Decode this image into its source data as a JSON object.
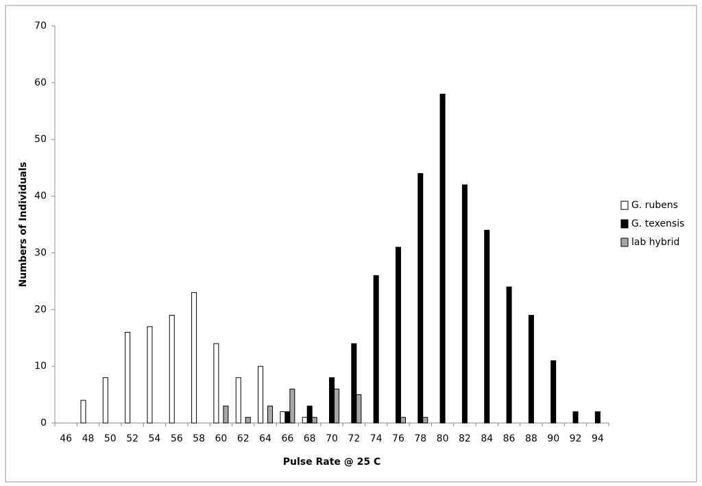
{
  "chart_data": {
    "type": "bar",
    "x_label": "Pulse Rate @ 25 C",
    "y_label": "Numbers of Individuals",
    "categories": [
      "46",
      "48",
      "50",
      "52",
      "54",
      "56",
      "58",
      "60",
      "62",
      "64",
      "66",
      "68",
      "70",
      "72",
      "74",
      "76",
      "78",
      "80",
      "82",
      "84",
      "86",
      "88",
      "90",
      "92",
      "94"
    ],
    "series": [
      {
        "name": "G. rubens",
        "color": "#ffffff",
        "values": [
          0,
          4,
          8,
          16,
          17,
          19,
          23,
          14,
          8,
          10,
          2,
          1,
          0,
          0,
          0,
          0,
          0,
          0,
          0,
          0,
          0,
          0,
          0,
          0,
          0
        ]
      },
      {
        "name": "G. texensis",
        "color": "#000000",
        "values": [
          0,
          0,
          0,
          0,
          0,
          0,
          0,
          0,
          0,
          0,
          2,
          3,
          8,
          14,
          26,
          31,
          44,
          58,
          42,
          34,
          24,
          19,
          11,
          2,
          2
        ]
      },
      {
        "name": "lab hybrid",
        "color": "#a6a6a6",
        "values": [
          0,
          0,
          0,
          0,
          0,
          0,
          0,
          3,
          1,
          3,
          6,
          1,
          6,
          5,
          0,
          1,
          1,
          0,
          0,
          0,
          0,
          0,
          0,
          0,
          0
        ]
      }
    ],
    "ylim": [
      0,
      70
    ],
    "yticks": [
      0,
      10,
      20,
      30,
      40,
      50,
      60,
      70
    ],
    "grid": false,
    "legend": "right"
  }
}
